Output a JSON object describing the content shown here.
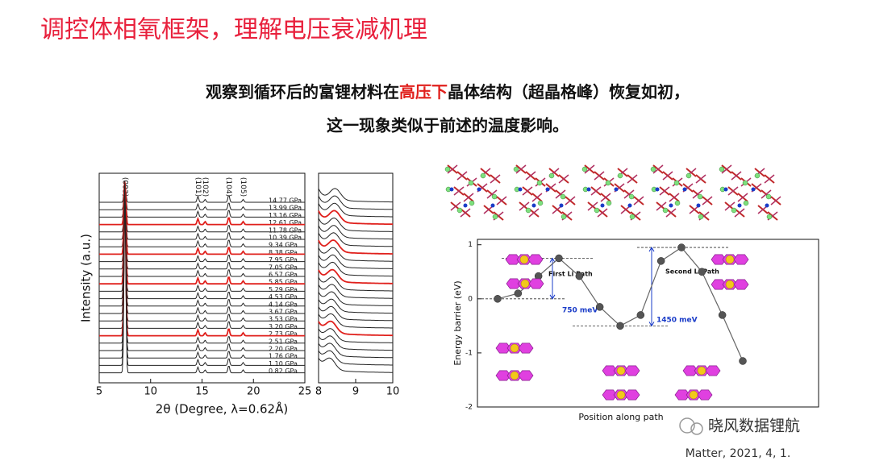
{
  "header": {
    "title": "调控体相氧框架，理解电压衰减机理"
  },
  "statement": {
    "line1_before": "观察到循环后的富锂材料在",
    "line1_highlight": "高压下",
    "line1_after": "晶体结构（超晶格峰）恢复如初，",
    "line2": "这一现象类似于前述的温度影响。"
  },
  "xrd": {
    "y_label": "Intensity (a.u.)",
    "x_label": "2θ (Degree, λ=0.62Å)",
    "xlim": [
      5,
      25
    ],
    "xticks": [
      5,
      10,
      15,
      20,
      25
    ],
    "zoom_xlim": [
      8,
      10
    ],
    "zoom_xticks": [
      8,
      9,
      10
    ],
    "peaks": [
      {
        "label": "(003)",
        "x": 7.5,
        "intensity": 100
      },
      {
        "label": "(101)",
        "x": 14.6,
        "intensity": 8
      },
      {
        "label": "(102)",
        "x": 15.3,
        "intensity": 4
      },
      {
        "label": "(104)",
        "x": 17.6,
        "intensity": 10
      },
      {
        "label": "(105)",
        "x": 19.0,
        "intensity": 4
      }
    ],
    "pressures": [
      {
        "label": "14.77 GPa",
        "color": "#222222"
      },
      {
        "label": "13.99 GPa",
        "color": "#222222"
      },
      {
        "label": "13.16 GPa",
        "color": "#222222"
      },
      {
        "label": "12.61 GPa",
        "color": "#e0201c"
      },
      {
        "label": "11.78 GPa",
        "color": "#222222"
      },
      {
        "label": "10.39 GPa",
        "color": "#222222"
      },
      {
        "label": "9.34 GPa",
        "color": "#222222"
      },
      {
        "label": "8.38 GPa",
        "color": "#e0201c"
      },
      {
        "label": "7.95 GPa",
        "color": "#222222"
      },
      {
        "label": "7.05 GPa",
        "color": "#222222"
      },
      {
        "label": "6.57 GPa",
        "color": "#222222"
      },
      {
        "label": "5.85 GPa",
        "color": "#e0201c"
      },
      {
        "label": "5.29 GPa",
        "color": "#222222"
      },
      {
        "label": "4.53 GPa",
        "color": "#222222"
      },
      {
        "label": "4.14 GPa",
        "color": "#222222"
      },
      {
        "label": "3.67 GPa",
        "color": "#222222"
      },
      {
        "label": "3.53 GPa",
        "color": "#222222"
      },
      {
        "label": "3.20 GPa",
        "color": "#222222"
      },
      {
        "label": "2.73 GPa",
        "color": "#e0201c"
      },
      {
        "label": "2.51 GPa",
        "color": "#222222"
      },
      {
        "label": "2.20 GPa",
        "color": "#222222"
      },
      {
        "label": "1.76 GPa",
        "color": "#222222"
      },
      {
        "label": "1.10 GPa",
        "color": "#222222"
      },
      {
        "label": "0.82 GPa",
        "color": "#222222"
      }
    ]
  },
  "energy": {
    "type": "line",
    "y_label": "Energy barrier (eV)",
    "x_label": "Position along path",
    "ylim": [
      -2,
      1.1
    ],
    "yticks": [
      -2,
      -1,
      0,
      1
    ],
    "color": "#666666",
    "values": [
      0,
      0.1,
      0.42,
      0.75,
      0.42,
      -0.15,
      -0.5,
      -0.3,
      0.7,
      0.95,
      0.5,
      -0.3,
      -1.15
    ],
    "path_labels": [
      "First Li Path",
      "Second Li Path"
    ],
    "barriers": [
      "750 meV",
      "1450 meV"
    ]
  },
  "watermark": "晓风数据锂航",
  "citation": "Matter, 2021, 4, 1."
}
